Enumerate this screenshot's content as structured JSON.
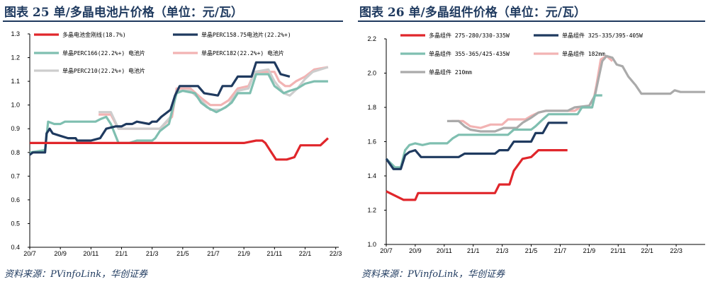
{
  "panels": [
    {
      "title": "图表 25 单/多晶电池片价格（单位：元/瓦）",
      "source": "资料来源：PVinfoLink，华创证券"
    },
    {
      "title": "图表 26 单/多晶组件价格（单位：元/瓦）",
      "source": "资料来源：PVinfoLink，华创证券"
    }
  ],
  "chart_data": [
    {
      "type": "line",
      "title": "图表 25 单/多晶电池片价格（单位：元/瓦）",
      "xlabel": "",
      "ylabel": "",
      "ylim": [
        0.4,
        1.3
      ],
      "yticks": [
        "0.4",
        "0.5",
        "0.6",
        "0.7",
        "0.8",
        "0.9",
        "1.0",
        "1.1",
        "1.2",
        "1.3"
      ],
      "x_tick_labels": [
        "20/7",
        "20/9",
        "20/11",
        "21/1",
        "21/3",
        "21/5",
        "21/7",
        "21/9",
        "21/11",
        "22/1",
        "22/3"
      ],
      "grid": false,
      "legend": "top",
      "series": [
        {
          "name": "多晶电池金刚线(18.7%)",
          "color": "#e0262b",
          "points": [
            [
              0,
              0.84
            ],
            [
              14,
              0.84
            ],
            [
              14.8,
              0.85
            ],
            [
              15.2,
              0.85
            ],
            [
              15.4,
              0.84
            ],
            [
              15.8,
              0.8
            ],
            [
              16.1,
              0.77
            ],
            [
              16.8,
              0.77
            ],
            [
              17.3,
              0.78
            ],
            [
              17.7,
              0.83
            ],
            [
              19,
              0.83
            ],
            [
              19.5,
              0.86
            ]
          ]
        },
        {
          "name": "单晶PERC158.75电池片(22.2%+)",
          "color": "#1f3a5f",
          "points": [
            [
              0,
              0.79
            ],
            [
              0.2,
              0.8
            ],
            [
              1,
              0.8
            ],
            [
              1.1,
              0.88
            ],
            [
              1.3,
              0.9
            ],
            [
              1.5,
              0.88
            ],
            [
              2,
              0.87
            ],
            [
              2.5,
              0.86
            ],
            [
              3,
              0.86
            ],
            [
              3.1,
              0.85
            ],
            [
              4,
              0.85
            ],
            [
              4.6,
              0.86
            ],
            [
              5,
              0.9
            ],
            [
              5.6,
              0.91
            ],
            [
              6,
              0.91
            ],
            [
              6.3,
              0.92
            ],
            [
              6.7,
              0.92
            ],
            [
              7,
              0.93
            ],
            [
              7.8,
              0.92
            ],
            [
              8,
              0.93
            ],
            [
              8.3,
              0.93
            ],
            [
              8.6,
              0.95
            ],
            [
              9.2,
              0.98
            ],
            [
              9.5,
              1.04
            ],
            [
              9.8,
              1.08
            ],
            [
              11,
              1.08
            ],
            [
              11.4,
              1.05
            ],
            [
              12.3,
              1.04
            ],
            [
              12.6,
              1.08
            ],
            [
              13.2,
              1.08
            ],
            [
              13.6,
              1.12
            ],
            [
              14.5,
              1.12
            ],
            [
              14.8,
              1.18
            ],
            [
              16,
              1.18
            ],
            [
              16.4,
              1.13
            ],
            [
              17,
              1.12
            ]
          ]
        },
        {
          "name": "单晶PERC166(22.2%+) 电池片",
          "color": "#7fbfb0",
          "points": [
            [
              0,
              0.8
            ],
            [
              1,
              0.81
            ],
            [
              1.2,
              0.93
            ],
            [
              1.6,
              0.92
            ],
            [
              2,
              0.92
            ],
            [
              2.3,
              0.93
            ],
            [
              4.3,
              0.93
            ],
            [
              4.6,
              0.94
            ],
            [
              5,
              0.95
            ],
            [
              5.3,
              0.92
            ],
            [
              5.8,
              0.84
            ],
            [
              6.5,
              0.84
            ],
            [
              7,
              0.85
            ],
            [
              8,
              0.85
            ],
            [
              8.2,
              0.86
            ],
            [
              8.5,
              0.89
            ],
            [
              9.1,
              0.92
            ],
            [
              9.4,
              1.0
            ],
            [
              9.6,
              1.05
            ],
            [
              10,
              1.06
            ],
            [
              10.8,
              1.05
            ],
            [
              11.2,
              1.01
            ],
            [
              11.6,
              0.99
            ],
            [
              12.2,
              0.97
            ],
            [
              12.8,
              0.99
            ],
            [
              13.2,
              1.01
            ],
            [
              13.6,
              1.05
            ],
            [
              14.4,
              1.05
            ],
            [
              14.8,
              1.13
            ],
            [
              15.6,
              1.13
            ],
            [
              16,
              1.08
            ],
            [
              16.6,
              1.05
            ],
            [
              17,
              1.06
            ],
            [
              17.5,
              1.07
            ],
            [
              18,
              1.09
            ],
            [
              18.6,
              1.1
            ],
            [
              19.5,
              1.1
            ]
          ]
        },
        {
          "name": "单晶PERC182(22.2%+) 电池片",
          "color": "#f2b3b3",
          "points": [
            [
              4.5,
              0.96
            ],
            [
              5.3,
              0.96
            ],
            [
              5.8,
              0.9
            ],
            [
              8.5,
              0.9
            ],
            [
              9.3,
              0.95
            ],
            [
              9.6,
              1.07
            ],
            [
              10.5,
              1.07
            ],
            [
              11.2,
              1.03
            ],
            [
              11.8,
              1.0
            ],
            [
              12.5,
              1.0
            ],
            [
              13,
              1.02
            ],
            [
              13.6,
              1.07
            ],
            [
              14.3,
              1.08
            ],
            [
              14.7,
              1.14
            ],
            [
              16,
              1.14
            ],
            [
              16.3,
              1.1
            ],
            [
              16.7,
              1.08
            ],
            [
              17,
              1.08
            ],
            [
              17.4,
              1.1
            ],
            [
              18,
              1.12
            ],
            [
              18.6,
              1.15
            ],
            [
              19.5,
              1.16
            ]
          ]
        },
        {
          "name": "单晶PERC210(22.2%+) 电池片",
          "color": "#cdcdcd",
          "points": [
            [
              4.5,
              0.97
            ],
            [
              5.3,
              0.97
            ],
            [
              5.8,
              0.9
            ],
            [
              8.5,
              0.9
            ],
            [
              9.2,
              0.95
            ],
            [
              9.6,
              1.06
            ],
            [
              10.5,
              1.06
            ],
            [
              11.2,
              1.02
            ],
            [
              11.8,
              0.98
            ],
            [
              12.5,
              0.98
            ],
            [
              13,
              1.0
            ],
            [
              13.6,
              1.06
            ],
            [
              14.3,
              1.07
            ],
            [
              14.7,
              1.14
            ],
            [
              15.6,
              1.15
            ],
            [
              16,
              1.1
            ],
            [
              16.6,
              1.05
            ],
            [
              17,
              1.04
            ],
            [
              17.5,
              1.07
            ],
            [
              18,
              1.11
            ],
            [
              18.5,
              1.14
            ],
            [
              19.5,
              1.16
            ]
          ]
        }
      ]
    },
    {
      "type": "line",
      "title": "图表 26 单/多晶组件价格（单位：元/瓦）",
      "xlabel": "",
      "ylabel": "",
      "ylim": [
        1.0,
        2.2
      ],
      "yticks": [
        "1.0",
        "1.2",
        "1.4",
        "1.6",
        "1.8",
        "2.0",
        "2.2"
      ],
      "x_tick_labels": [
        "20/7",
        "20/9",
        "20/11",
        "21/1",
        "21/3",
        "21/5",
        "21/7",
        "21/9",
        "21/11",
        "22/1",
        "22/3"
      ],
      "grid": false,
      "legend": "top",
      "series": [
        {
          "name": "多晶组件 275-280/330-335W",
          "color": "#e0262b",
          "points": [
            [
              0,
              1.31
            ],
            [
              1.2,
              1.26
            ],
            [
              2,
              1.26
            ],
            [
              2.2,
              1.3
            ],
            [
              7.5,
              1.3
            ],
            [
              7.8,
              1.35
            ],
            [
              8.5,
              1.35
            ],
            [
              8.8,
              1.43
            ],
            [
              9.4,
              1.5
            ],
            [
              10,
              1.51
            ],
            [
              10.5,
              1.55
            ],
            [
              12.5,
              1.55
            ]
          ]
        },
        {
          "name": "单晶组件 325-335/395-405W",
          "color": "#1f3a5f",
          "points": [
            [
              0,
              1.5
            ],
            [
              0.5,
              1.44
            ],
            [
              1,
              1.44
            ],
            [
              1.3,
              1.52
            ],
            [
              1.6,
              1.54
            ],
            [
              2,
              1.55
            ],
            [
              2.4,
              1.51
            ],
            [
              5,
              1.51
            ],
            [
              5.4,
              1.53
            ],
            [
              7.5,
              1.53
            ],
            [
              7.8,
              1.55
            ],
            [
              8.4,
              1.55
            ],
            [
              8.8,
              1.6
            ],
            [
              10,
              1.6
            ],
            [
              10.3,
              1.65
            ],
            [
              10.8,
              1.65
            ],
            [
              11.2,
              1.71
            ],
            [
              12.5,
              1.71
            ]
          ]
        },
        {
          "name": "单晶组件 355-365/425-435W",
          "color": "#7fbfb0",
          "points": [
            [
              0,
              1.5
            ],
            [
              0.6,
              1.45
            ],
            [
              1,
              1.45
            ],
            [
              1.3,
              1.55
            ],
            [
              1.6,
              1.58
            ],
            [
              2,
              1.59
            ],
            [
              2.5,
              1.58
            ],
            [
              3,
              1.59
            ],
            [
              4.2,
              1.59
            ],
            [
              4.6,
              1.62
            ],
            [
              5,
              1.64
            ],
            [
              8.4,
              1.64
            ],
            [
              8.8,
              1.67
            ],
            [
              10,
              1.67
            ],
            [
              10.3,
              1.69
            ],
            [
              10.8,
              1.73
            ],
            [
              11.2,
              1.76
            ],
            [
              13.2,
              1.76
            ],
            [
              13.5,
              1.8
            ],
            [
              14.2,
              1.8
            ],
            [
              14.4,
              1.87
            ],
            [
              14.9,
              1.87
            ]
          ]
        },
        {
          "name": "单晶组件 182mm",
          "color": "#f2b3b3",
          "points": [
            [
              4.5,
              1.72
            ],
            [
              5.3,
              1.72
            ],
            [
              5.8,
              1.69
            ],
            [
              6.5,
              1.68
            ],
            [
              7.2,
              1.7
            ],
            [
              8,
              1.7
            ],
            [
              8.4,
              1.73
            ],
            [
              9.6,
              1.73
            ],
            [
              10,
              1.75
            ],
            [
              10.5,
              1.77
            ],
            [
              11,
              1.78
            ],
            [
              13,
              1.78
            ],
            [
              13.4,
              1.8
            ],
            [
              14.2,
              1.8
            ],
            [
              14.5,
              1.93
            ],
            [
              14.8,
              2.08
            ],
            [
              15.2,
              2.1
            ],
            [
              15.6,
              2.07
            ]
          ]
        },
        {
          "name": "单晶组件 210mm",
          "color": "#aaaaaa",
          "points": [
            [
              4.2,
              1.72
            ],
            [
              5,
              1.72
            ],
            [
              5.4,
              1.69
            ],
            [
              5.8,
              1.67
            ],
            [
              6.5,
              1.66
            ],
            [
              7.5,
              1.66
            ],
            [
              8.1,
              1.68
            ],
            [
              9,
              1.68
            ],
            [
              9.4,
              1.71
            ],
            [
              10,
              1.74
            ],
            [
              10.5,
              1.77
            ],
            [
              11,
              1.78
            ],
            [
              12.5,
              1.78
            ],
            [
              13,
              1.8
            ],
            [
              14,
              1.81
            ],
            [
              14.4,
              1.87
            ],
            [
              14.6,
              1.95
            ],
            [
              14.9,
              2.07
            ],
            [
              15.2,
              2.1
            ],
            [
              15.6,
              2.09
            ],
            [
              15.9,
              2.05
            ],
            [
              16.3,
              2.04
            ],
            [
              16.7,
              1.98
            ],
            [
              17.2,
              1.93
            ],
            [
              17.6,
              1.88
            ],
            [
              19.6,
              1.88
            ],
            [
              19.9,
              1.9
            ],
            [
              20.3,
              1.89
            ],
            [
              22,
              1.89
            ]
          ]
        }
      ]
    }
  ]
}
